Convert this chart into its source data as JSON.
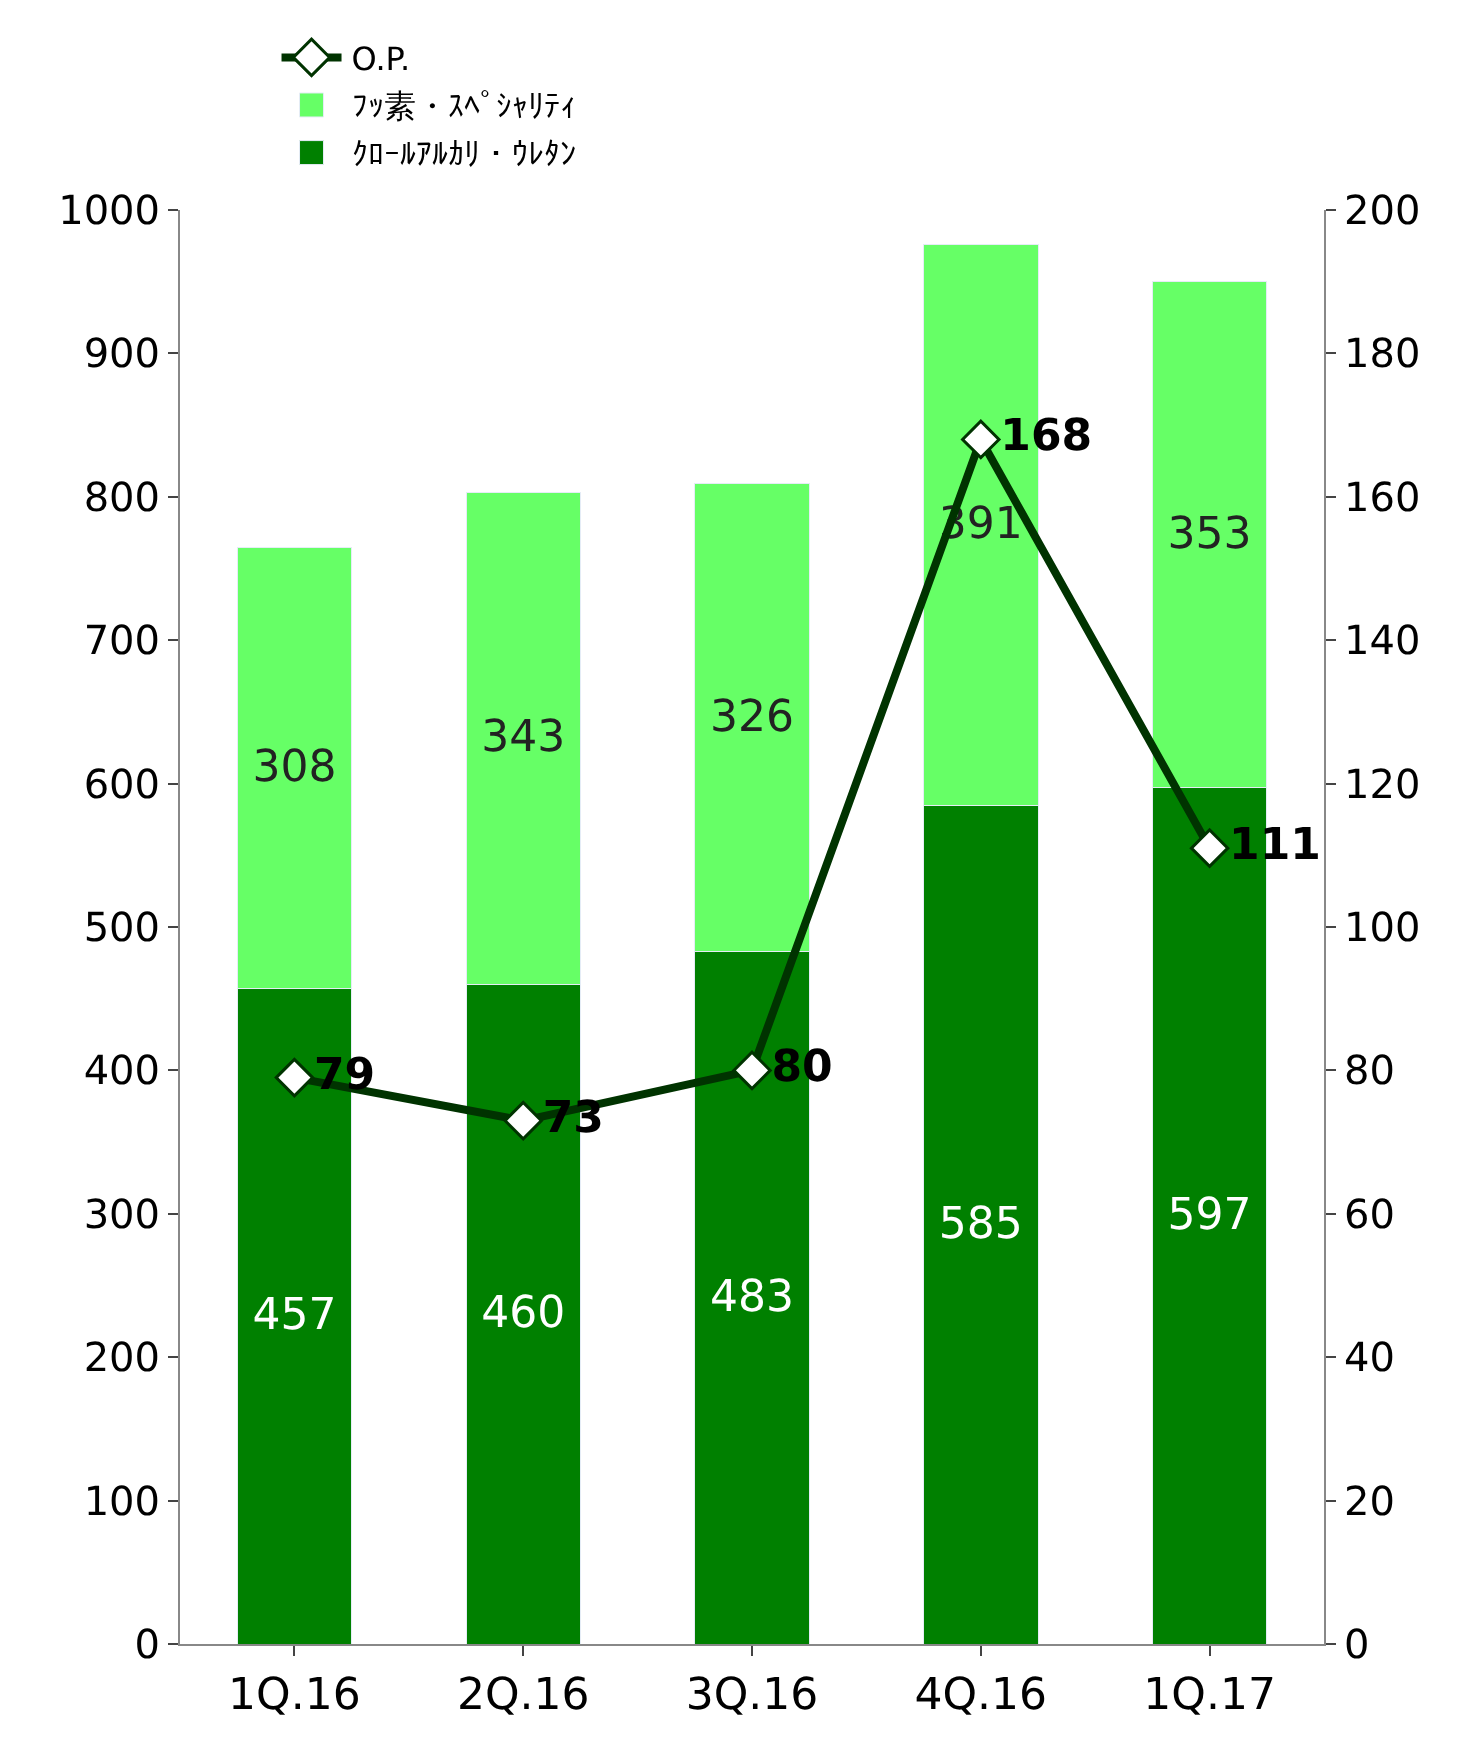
{
  "chart_data": {
    "type": "bar",
    "stacked": true,
    "categories": [
      "1Q.16",
      "2Q.16",
      "3Q.16",
      "4Q.16",
      "1Q.17"
    ],
    "series": [
      {
        "name": "ｸﾛｰﾙｱﾙｶﾘ・ｳﾚﾀﾝ",
        "color": "#008000",
        "values": [
          457,
          460,
          483,
          585,
          597
        ]
      },
      {
        "name": "ﾌｯ素・ｽﾍﾟｼｬﾘﾃｨ",
        "color": "#66ff66",
        "values": [
          308,
          343,
          326,
          391,
          353
        ]
      },
      {
        "name": "O.P.",
        "type": "line",
        "axis": "y2",
        "color": "#003300",
        "marker": "diamond",
        "values": [
          79,
          73,
          80,
          168,
          111
        ]
      }
    ],
    "ylim": [
      0,
      1000
    ],
    "yticks": [
      0,
      100,
      200,
      300,
      400,
      500,
      600,
      700,
      800,
      900,
      1000
    ],
    "y2lim": [
      0,
      200
    ],
    "y2ticks": [
      0,
      20,
      40,
      60,
      80,
      100,
      120,
      140,
      160,
      180,
      200
    ],
    "data_labels": true,
    "legend": "top left",
    "grid": false
  }
}
